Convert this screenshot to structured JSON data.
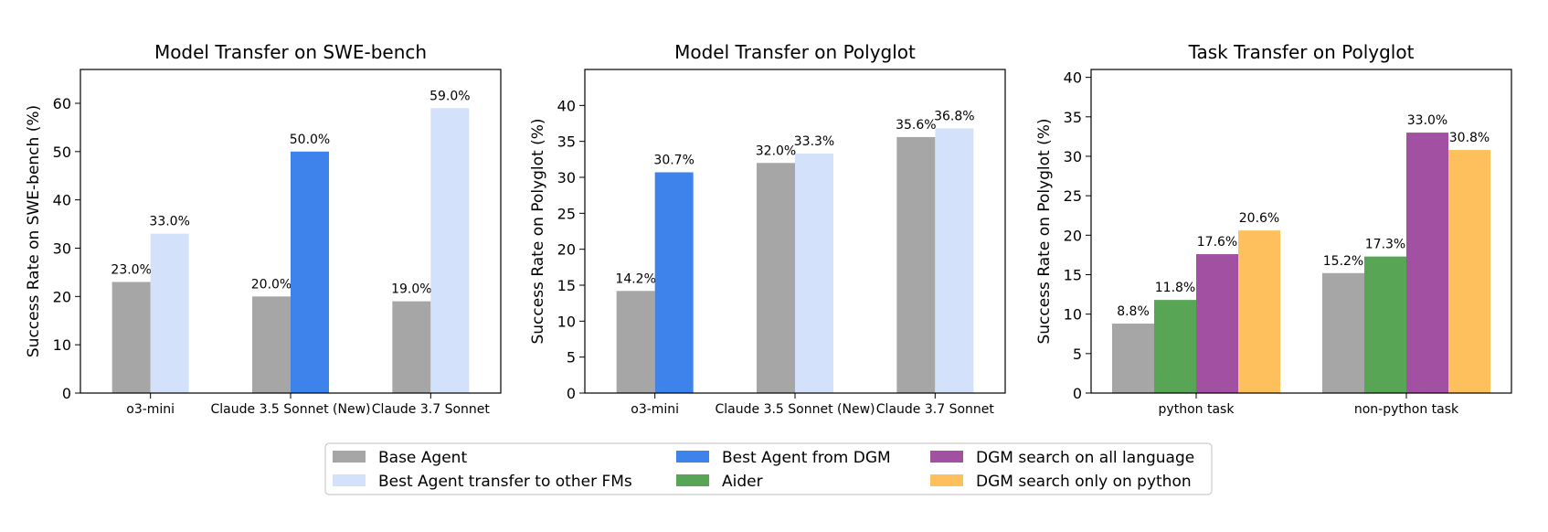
{
  "chart_data": [
    {
      "type": "bar",
      "title": "Model Transfer on SWE-bench",
      "xlabel": "",
      "ylabel": "Success Rate on SWE-bench (%)",
      "ylim": [
        0,
        67
      ],
      "yticks": [
        0,
        10,
        20,
        30,
        40,
        50,
        60
      ],
      "categories": [
        "o3-mini",
        "Claude 3.5 Sonnet (New)",
        "Claude 3.7 Sonnet"
      ],
      "bars": [
        [
          {
            "series": "Base Agent",
            "value": 23.0,
            "label": "23.0%"
          },
          {
            "series": "Best Agent transfer to other FMs",
            "value": 33.0,
            "label": "33.0%"
          }
        ],
        [
          {
            "series": "Base Agent",
            "value": 20.0,
            "label": "20.0%"
          },
          {
            "series": "Best Agent from DGM",
            "value": 50.0,
            "label": "50.0%"
          }
        ],
        [
          {
            "series": "Base Agent",
            "value": 19.0,
            "label": "19.0%"
          },
          {
            "series": "Best Agent transfer to other FMs",
            "value": 59.0,
            "label": "59.0%"
          }
        ]
      ]
    },
    {
      "type": "bar",
      "title": "Model Transfer on Polyglot",
      "xlabel": "",
      "ylabel": "Success Rate on Polyglot (%)",
      "ylim": [
        0,
        45
      ],
      "yticks": [
        0,
        5,
        10,
        15,
        20,
        25,
        30,
        35,
        40
      ],
      "categories": [
        "o3-mini",
        "Claude 3.5 Sonnet (New)",
        "Claude 3.7 Sonnet"
      ],
      "bars": [
        [
          {
            "series": "Base Agent",
            "value": 14.2,
            "label": "14.2%"
          },
          {
            "series": "Best Agent from DGM",
            "value": 30.7,
            "label": "30.7%"
          }
        ],
        [
          {
            "series": "Base Agent",
            "value": 32.0,
            "label": "32.0%"
          },
          {
            "series": "Best Agent transfer to other FMs",
            "value": 33.3,
            "label": "33.3%"
          }
        ],
        [
          {
            "series": "Base Agent",
            "value": 35.6,
            "label": "35.6%"
          },
          {
            "series": "Best Agent transfer to other FMs",
            "value": 36.8,
            "label": "36.8%"
          }
        ]
      ]
    },
    {
      "type": "bar",
      "title": "Task Transfer on Polyglot",
      "xlabel": "",
      "ylabel": "Success Rate on Polyglot (%)",
      "ylim": [
        0,
        41
      ],
      "yticks": [
        0,
        5,
        10,
        15,
        20,
        25,
        30,
        35,
        40
      ],
      "categories": [
        "python task",
        "non-python task"
      ],
      "bars": [
        [
          {
            "series": "Base Agent",
            "value": 8.8,
            "label": "8.8%"
          },
          {
            "series": "Aider",
            "value": 11.8,
            "label": "11.8%"
          },
          {
            "series": "DGM search on all language",
            "value": 17.6,
            "label": "17.6%"
          },
          {
            "series": "DGM search only on python",
            "value": 20.6,
            "label": "20.6%"
          }
        ],
        [
          {
            "series": "Base Agent",
            "value": 15.2,
            "label": "15.2%"
          },
          {
            "series": "Aider",
            "value": 17.3,
            "label": "17.3%"
          },
          {
            "series": "DGM search on all language",
            "value": 33.0,
            "label": "33.0%"
          },
          {
            "series": "DGM search only on python",
            "value": 30.8,
            "label": "30.8%"
          }
        ]
      ]
    }
  ],
  "legend": {
    "placement": "bottom-center",
    "items": [
      {
        "label": "Base Agent",
        "color": "#a6a6a6"
      },
      {
        "label": "Best Agent transfer to other FMs",
        "color": "#d3e2fa"
      },
      {
        "label": "Best Agent from DGM",
        "color": "#3e83ec"
      },
      {
        "label": "Aider",
        "color": "#58a556"
      },
      {
        "label": "DGM search on all language",
        "color": "#a251a2"
      },
      {
        "label": "DGM search only on python",
        "color": "#fdc05c"
      }
    ]
  }
}
